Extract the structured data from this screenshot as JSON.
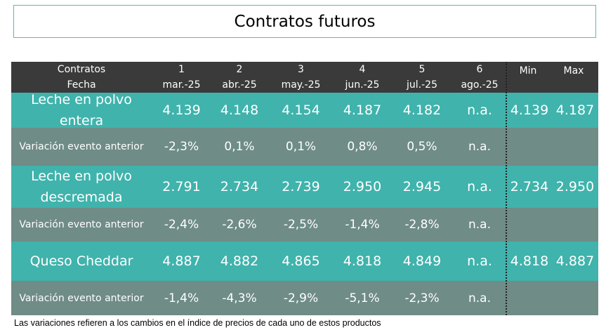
{
  "title": "Contratos futuros",
  "header": {
    "label_line1": "Contratos",
    "label_line2": "Fecha",
    "contracts": [
      {
        "num": "1",
        "date": "mar.-25"
      },
      {
        "num": "2",
        "date": "abr.-25"
      },
      {
        "num": "3",
        "date": "may.-25"
      },
      {
        "num": "4",
        "date": "jun.-25"
      },
      {
        "num": "5",
        "date": "jul.-25"
      },
      {
        "num": "6",
        "date": "ago.-25"
      }
    ],
    "min_label": "Min",
    "max_label": "Max"
  },
  "rows": [
    {
      "label_line1": "Leche en polvo",
      "label_line2": "entera",
      "values": [
        "4.139",
        "4.148",
        "4.154",
        "4.187",
        "4.182",
        "n.a."
      ],
      "min": "4.139",
      "max": "4.187"
    },
    {
      "label": "Variación evento anterior",
      "values": [
        "-2,3%",
        "0,1%",
        "0,1%",
        "0,8%",
        "0,5%",
        "n.a."
      ]
    },
    {
      "label_line1": "Leche en polvo",
      "label_line2": "descremada",
      "values": [
        "2.791",
        "2.734",
        "2.739",
        "2.950",
        "2.945",
        "n.a."
      ],
      "min": "2.734",
      "max": "2.950"
    },
    {
      "label": "Variación evento anterior",
      "values": [
        "-2,4%",
        "-2,6%",
        "-2,5%",
        "-1,4%",
        "-2,8%",
        "n.a."
      ]
    },
    {
      "label_line1": "Queso Cheddar",
      "values": [
        "4.887",
        "4.882",
        "4.865",
        "4.818",
        "4.849",
        "n.a."
      ],
      "min": "4.818",
      "max": "4.887"
    },
    {
      "label": "Variación evento anterior",
      "values": [
        "-1,4%",
        "-4,3%",
        "-2,9%",
        "-5,1%",
        "-2,3%",
        "n.a."
      ]
    }
  ],
  "footnote": "Las variaciones refieren a los cambios en el índice de precios de cada uno de estos productos",
  "colors": {
    "header_bg": "#3a3a3a",
    "teal": "#3fb3ac",
    "gray_green": "#6f8c86",
    "title_border": "#5fb8b3"
  }
}
